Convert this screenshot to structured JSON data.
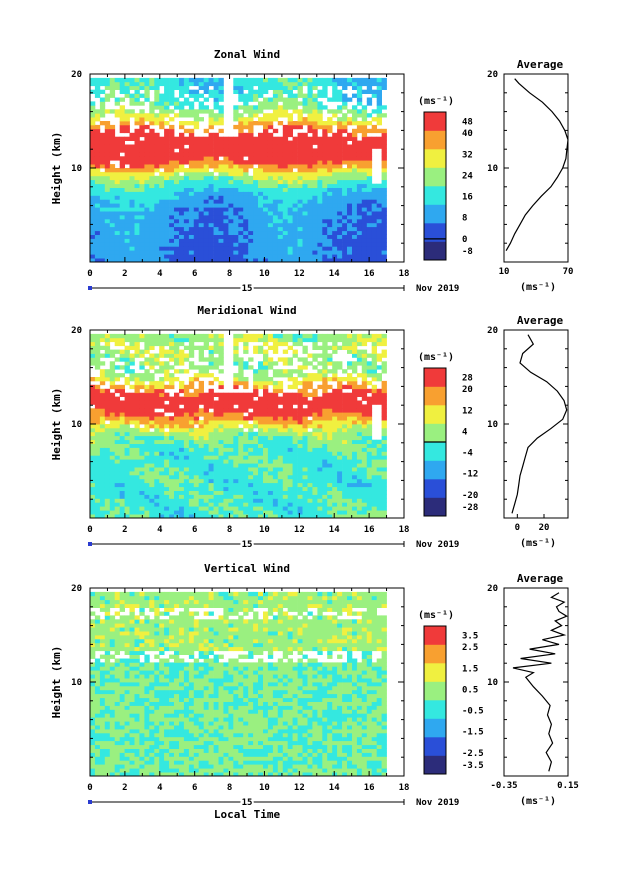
{
  "chart_data": [
    {
      "type": "heatmap",
      "title": "Zonal Wind",
      "xlabel": "",
      "ylabel": "Height (km)",
      "x_range": [
        0,
        18
      ],
      "x_ticks": [
        "0",
        "2",
        "4",
        "6",
        "8",
        "10",
        "12",
        "14",
        "16",
        "18"
      ],
      "y_range": [
        0,
        20
      ],
      "y_ticks": [
        "10",
        "20"
      ],
      "date_marker": "15",
      "date_label": "Nov 2019",
      "colorbar": {
        "unit": "(ms⁻¹)",
        "range": [
          -8,
          48
        ],
        "ticks": [
          "48",
          "40",
          "32",
          "24",
          "16",
          "8",
          "0",
          "-8"
        ],
        "zero_line": 0
      },
      "profile": {
        "title": "Average",
        "x_range": [
          10,
          70
        ],
        "x_ticks": [
          "10",
          "70"
        ],
        "y_ticks": [
          "10",
          "20"
        ],
        "unit": "(ms⁻¹)",
        "heights": [
          1.2,
          2,
          3,
          4,
          5,
          6,
          7,
          8,
          9,
          10,
          11,
          12,
          13,
          14,
          15,
          16,
          17,
          18,
          19,
          19.5
        ],
        "values": [
          12,
          16,
          20,
          25,
          30,
          37,
          45,
          54,
          60,
          65,
          68,
          69,
          70,
          67,
          62,
          55,
          46,
          34,
          24,
          20
        ]
      },
      "data_end_hour": 17
    },
    {
      "type": "heatmap",
      "title": "Meridional Wind",
      "xlabel": "",
      "ylabel": "Height (km)",
      "x_range": [
        0,
        18
      ],
      "x_ticks": [
        "0",
        "2",
        "4",
        "6",
        "8",
        "10",
        "12",
        "14",
        "16",
        "18"
      ],
      "y_range": [
        0,
        20
      ],
      "y_ticks": [
        "10",
        "20"
      ],
      "date_marker": "15",
      "date_label": "Nov 2019",
      "colorbar": {
        "unit": "(ms⁻¹)",
        "range": [
          -28,
          28
        ],
        "ticks": [
          "28",
          "20",
          "12",
          "4",
          "-4",
          "-12",
          "-20",
          "-28"
        ],
        "zero_line": 0
      },
      "profile": {
        "title": "Average",
        "x_range": [
          -10,
          38
        ],
        "x_ticks": [
          "0",
          "20"
        ],
        "y_ticks": [
          "10",
          "20"
        ],
        "unit": "(ms⁻¹)",
        "heights": [
          0.5,
          1.5,
          2.5,
          3.5,
          4.5,
          5.5,
          6.5,
          7.5,
          8.5,
          9.5,
          10.5,
          11.5,
          12.5,
          13.5,
          14.5,
          15.5,
          16.5,
          17.5,
          18.5,
          19.5
        ],
        "values": [
          -4,
          -2,
          0,
          1,
          2,
          4,
          6,
          8,
          15,
          25,
          34,
          37,
          35,
          30,
          22,
          10,
          2,
          4,
          12,
          8
        ]
      },
      "data_end_hour": 17
    },
    {
      "type": "heatmap",
      "title": "Vertical Wind",
      "xlabel": "Local Time",
      "ylabel": "Height (km)",
      "x_range": [
        0,
        18
      ],
      "x_ticks": [
        "0",
        "2",
        "4",
        "6",
        "8",
        "10",
        "12",
        "14",
        "16",
        "18"
      ],
      "y_range": [
        0,
        20
      ],
      "y_ticks": [
        "10",
        "20"
      ],
      "date_marker": "15",
      "date_label": "Nov 2019",
      "colorbar": {
        "unit": "(ms⁻¹)",
        "range": [
          -3.5,
          3.5
        ],
        "ticks": [
          "3.5",
          "2.5",
          "1.5",
          "0.5",
          "-0.5",
          "-1.5",
          "-2.5",
          "-3.5"
        ],
        "zero_line": null
      },
      "profile": {
        "title": "Average",
        "x_range": [
          -0.35,
          0.15
        ],
        "x_ticks": [
          "-0.35",
          "0.15"
        ],
        "y_ticks": [
          "10",
          "20"
        ],
        "unit": "(ms⁻¹)",
        "heights": [
          0.5,
          1.5,
          2.5,
          3.5,
          4.5,
          5.5,
          6.5,
          7.5,
          8.5,
          9.5,
          10.5,
          11,
          11.5,
          12,
          12.5,
          13,
          13.5,
          14,
          14.5,
          15,
          15.5,
          16,
          16.5,
          17,
          17.5,
          18,
          18.5,
          19,
          19.5
        ],
        "values": [
          0,
          0.02,
          -0.02,
          0.03,
          0,
          0.02,
          -0.01,
          0.01,
          -0.05,
          -0.12,
          -0.18,
          -0.12,
          -0.28,
          0.02,
          -0.22,
          0.05,
          -0.15,
          0.08,
          -0.05,
          0.12,
          0.02,
          0.1,
          0.05,
          0.14,
          0.08,
          0.06,
          0.12,
          0.02,
          0.08
        ]
      },
      "data_end_hour": 17
    }
  ]
}
